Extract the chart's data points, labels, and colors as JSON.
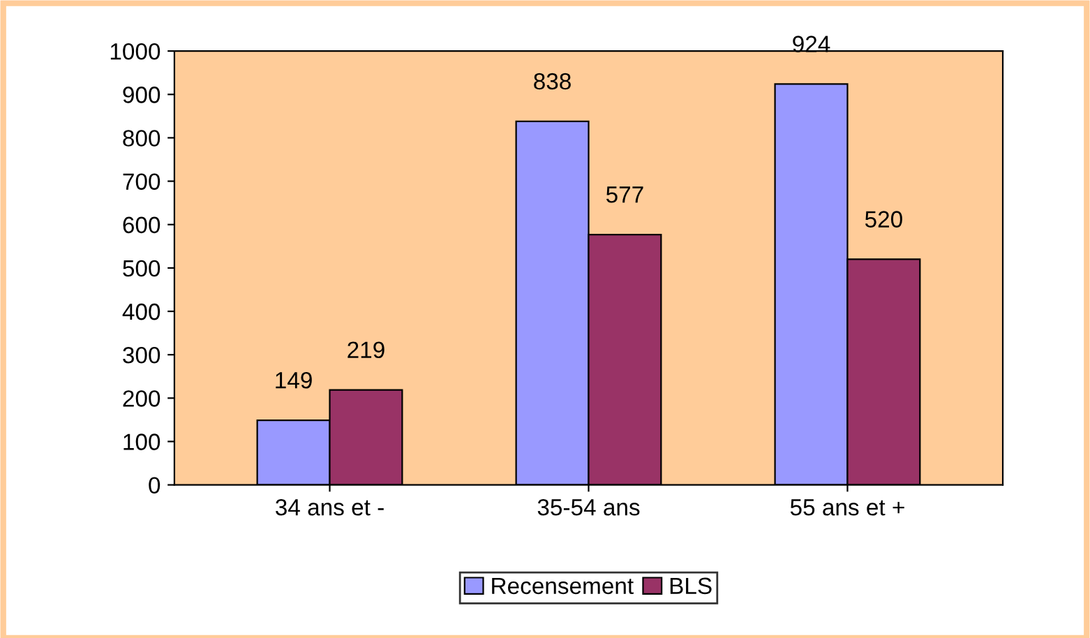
{
  "chart_data": {
    "type": "bar",
    "categories": [
      "34 ans et -",
      "35-54 ans",
      "55 ans et +"
    ],
    "series": [
      {
        "name": "Recensement",
        "color": "#9999ff",
        "values": [
          149,
          838,
          924
        ]
      },
      {
        "name": "BLS",
        "color": "#993366",
        "values": [
          219,
          577,
          520
        ]
      }
    ],
    "ylim": [
      0,
      1000
    ],
    "yticks": [
      0,
      100,
      200,
      300,
      400,
      500,
      600,
      700,
      800,
      900,
      1000
    ],
    "data_labels": true,
    "legend": "bottom",
    "grid": false
  }
}
